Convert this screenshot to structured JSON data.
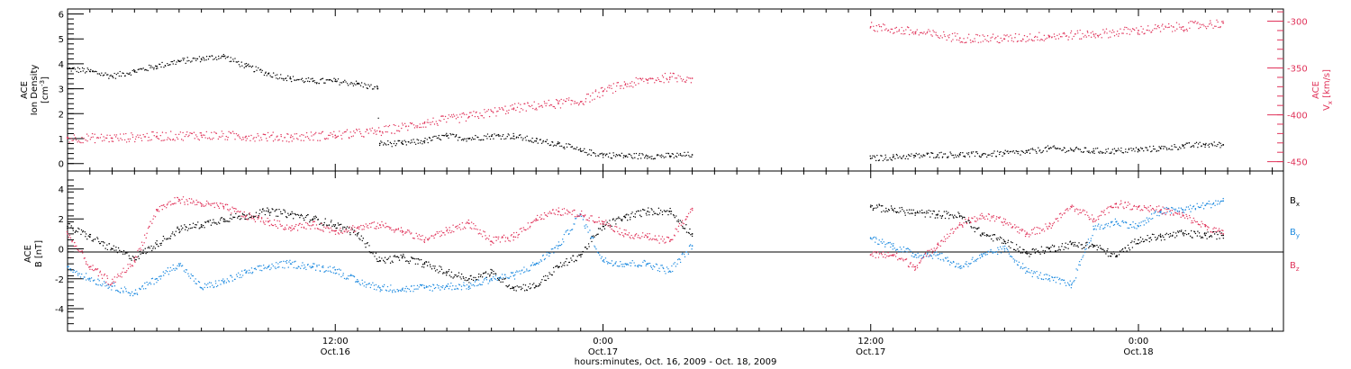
{
  "colors": {
    "black": "#000000",
    "pink": "#e0335a",
    "blue": "#1f8be0"
  },
  "xaxis": {
    "title": "hours:minutes, Oct. 16, 2009 - Oct. 18, 2009",
    "ticks": [
      {
        "time": "12:00",
        "date": "Oct.16",
        "hours": 12
      },
      {
        "time": "0:00",
        "date": "Oct.17",
        "hours": 24
      },
      {
        "time": "12:00",
        "date": "Oct.17",
        "hours": 36
      },
      {
        "time": "0:00",
        "date": "Oct.18",
        "hours": 48
      }
    ],
    "range_hours": [
      0,
      54.5
    ]
  },
  "chart_data": [
    {
      "type": "scatter",
      "panel": "top",
      "ylabel_left": [
        "ACE",
        "Ion Density",
        "[cm",
        "-3",
        "]"
      ],
      "ylabel_right": [
        "ACE",
        "V",
        "x",
        " [km/s]"
      ],
      "yticks_left": [
        "0",
        "1",
        "2",
        "3",
        "4",
        "5",
        "6"
      ],
      "ylim_left": [
        -0.3,
        6.2
      ],
      "yticks_right": [
        "-300",
        "-350",
        "-400",
        "-450"
      ],
      "ylim_right": [
        -460,
        -287
      ],
      "series": [
        {
          "axis": "left",
          "color": "black",
          "points": [
            [
              0,
              3.8
            ],
            [
              1,
              3.7
            ],
            [
              2,
              3.5
            ],
            [
              3,
              3.7
            ],
            [
              4,
              3.9
            ],
            [
              5,
              4.1
            ],
            [
              6,
              4.2
            ],
            [
              7,
              4.3
            ],
            [
              8,
              3.9
            ],
            [
              9,
              3.6
            ],
            [
              10,
              3.4
            ],
            [
              11,
              3.3
            ],
            [
              12,
              3.3
            ],
            [
              13,
              3.2
            ],
            [
              13.9,
              3.0
            ],
            [
              14,
              0.8
            ],
            [
              15,
              0.8
            ],
            [
              16,
              0.9
            ],
            [
              17,
              1.1
            ],
            [
              18,
              1.0
            ],
            [
              19,
              1.1
            ],
            [
              20,
              1.1
            ],
            [
              21,
              0.9
            ],
            [
              22,
              0.8
            ],
            [
              23,
              0.5
            ],
            [
              24,
              0.35
            ],
            [
              25,
              0.3
            ],
            [
              26,
              0.3
            ],
            [
              27,
              0.3
            ],
            [
              28,
              0.35
            ],
            [
              36,
              0.2
            ],
            [
              37,
              0.25
            ],
            [
              38,
              0.3
            ],
            [
              39,
              0.35
            ],
            [
              40,
              0.35
            ],
            [
              41,
              0.35
            ],
            [
              42,
              0.4
            ],
            [
              43,
              0.45
            ],
            [
              44,
              0.6
            ],
            [
              45,
              0.55
            ],
            [
              46,
              0.5
            ],
            [
              47,
              0.5
            ],
            [
              48,
              0.55
            ],
            [
              49,
              0.6
            ],
            [
              50,
              0.7
            ],
            [
              51,
              0.75
            ],
            [
              51.8,
              0.75
            ]
          ]
        },
        {
          "axis": "right",
          "color": "pink",
          "points": [
            [
              0,
              -425
            ],
            [
              2,
              -425
            ],
            [
              4,
              -423
            ],
            [
              6,
              -422
            ],
            [
              8,
              -423
            ],
            [
              10,
              -424
            ],
            [
              12,
              -422
            ],
            [
              14,
              -418
            ],
            [
              16,
              -409
            ],
            [
              18,
              -402
            ],
            [
              20,
              -393
            ],
            [
              22,
              -388
            ],
            [
              23,
              -386
            ],
            [
              24,
              -375
            ],
            [
              25,
              -368
            ],
            [
              26,
              -363
            ],
            [
              27,
              -360
            ],
            [
              28,
              -361
            ],
            [
              36,
              -306
            ],
            [
              38,
              -312
            ],
            [
              40,
              -318
            ],
            [
              42,
              -319
            ],
            [
              44,
              -316
            ],
            [
              46,
              -314
            ],
            [
              48,
              -310
            ],
            [
              50,
              -306
            ],
            [
              51.8,
              -302
            ]
          ]
        }
      ]
    },
    {
      "type": "scatter",
      "panel": "bottom",
      "ylabel_left": [
        "ACE",
        "B",
        " [nT]"
      ],
      "yticks_left": [
        "-4",
        "-2",
        "0",
        "2",
        "4"
      ],
      "ylim_left": [
        -5.5,
        5.2
      ],
      "legend": [
        "B",
        "x",
        "B",
        "y",
        "B",
        "z"
      ],
      "legend_position": "right",
      "series": [
        {
          "name_bind": "Bx",
          "color": "black",
          "points": [
            [
              0,
              1.5
            ],
            [
              1,
              0.8
            ],
            [
              2,
              0
            ],
            [
              3,
              -0.6
            ],
            [
              4,
              0.3
            ],
            [
              5,
              1.3
            ],
            [
              6,
              1.6
            ],
            [
              7,
              2.0
            ],
            [
              8,
              2.2
            ],
            [
              9,
              2.5
            ],
            [
              10,
              2.3
            ],
            [
              11,
              2.0
            ],
            [
              12,
              1.6
            ],
            [
              13,
              1.0
            ],
            [
              14,
              -0.8
            ],
            [
              15,
              -0.6
            ],
            [
              16,
              -1.0
            ],
            [
              17,
              -1.6
            ],
            [
              18,
              -2.0
            ],
            [
              19,
              -1.6
            ],
            [
              20,
              -2.6
            ],
            [
              21,
              -2.5
            ],
            [
              22,
              -1.2
            ],
            [
              23,
              -0.4
            ],
            [
              24,
              1.5
            ],
            [
              25,
              2.1
            ],
            [
              26,
              2.5
            ],
            [
              27,
              2.5
            ],
            [
              28,
              1.0
            ],
            [
              36,
              2.8
            ],
            [
              37,
              2.6
            ],
            [
              38,
              2.4
            ],
            [
              39,
              2.3
            ],
            [
              40,
              2.2
            ],
            [
              41,
              1.0
            ],
            [
              42,
              0.5
            ],
            [
              43,
              -0.3
            ],
            [
              44,
              0
            ],
            [
              45,
              0.3
            ],
            [
              46,
              0.2
            ],
            [
              47,
              -0.5
            ],
            [
              48,
              0.6
            ],
            [
              49,
              0.8
            ],
            [
              50,
              1.0
            ],
            [
              51,
              0.9
            ],
            [
              51.8,
              0.9
            ]
          ]
        },
        {
          "name_bind": "By",
          "color": "blue",
          "points": [
            [
              0,
              -1.2
            ],
            [
              1,
              -2.0
            ],
            [
              2,
              -2.5
            ],
            [
              3,
              -3.0
            ],
            [
              4,
              -2.0
            ],
            [
              5,
              -1.0
            ],
            [
              6,
              -2.6
            ],
            [
              7,
              -2.2
            ],
            [
              8,
              -1.6
            ],
            [
              9,
              -1.2
            ],
            [
              10,
              -1.0
            ],
            [
              11,
              -1.2
            ],
            [
              12,
              -1.4
            ],
            [
              13,
              -2.2
            ],
            [
              14,
              -2.6
            ],
            [
              15,
              -2.7
            ],
            [
              16,
              -2.6
            ],
            [
              17,
              -2.5
            ],
            [
              18,
              -2.5
            ],
            [
              19,
              -2.0
            ],
            [
              20,
              -1.8
            ],
            [
              21,
              -1.0
            ],
            [
              22,
              0.2
            ],
            [
              23,
              2.3
            ],
            [
              24,
              -0.8
            ],
            [
              25,
              -1.0
            ],
            [
              26,
              -1.0
            ],
            [
              27,
              -1.5
            ],
            [
              28,
              0.2
            ],
            [
              36,
              0.7
            ],
            [
              37,
              0.2
            ],
            [
              38,
              -0.4
            ],
            [
              39,
              -0.4
            ],
            [
              40,
              -1.2
            ],
            [
              41,
              -0.5
            ],
            [
              42,
              0
            ],
            [
              43,
              -1.5
            ],
            [
              44,
              -2.0
            ],
            [
              45,
              -2.4
            ],
            [
              46,
              1.3
            ],
            [
              47,
              1.8
            ],
            [
              48,
              1.5
            ],
            [
              49,
              2.5
            ],
            [
              50,
              2.6
            ],
            [
              51,
              2.9
            ],
            [
              51.8,
              3.2
            ]
          ]
        },
        {
          "name_bind": "Bz",
          "color": "pink",
          "points": [
            [
              0,
              1.0
            ],
            [
              1,
              -1.2
            ],
            [
              2,
              -2.3
            ],
            [
              3,
              -0.8
            ],
            [
              4,
              2.6
            ],
            [
              5,
              3.3
            ],
            [
              6,
              3.0
            ],
            [
              7,
              2.8
            ],
            [
              8,
              2.2
            ],
            [
              9,
              1.8
            ],
            [
              10,
              1.4
            ],
            [
              11,
              1.6
            ],
            [
              12,
              1.2
            ],
            [
              13,
              1.4
            ],
            [
              14,
              1.6
            ],
            [
              15,
              1.2
            ],
            [
              16,
              0.6
            ],
            [
              17,
              1.2
            ],
            [
              18,
              1.7
            ],
            [
              19,
              0.5
            ],
            [
              20,
              0.8
            ],
            [
              21,
              2.0
            ],
            [
              22,
              2.5
            ],
            [
              23,
              2.3
            ],
            [
              24,
              1.8
            ],
            [
              25,
              1.0
            ],
            [
              26,
              0.8
            ],
            [
              27,
              0.5
            ],
            [
              28,
              2.7
            ],
            [
              36,
              -0.4
            ],
            [
              37,
              -0.4
            ],
            [
              38,
              -1.2
            ],
            [
              39,
              0.3
            ],
            [
              40,
              1.6
            ],
            [
              41,
              2.2
            ],
            [
              42,
              1.8
            ],
            [
              43,
              1.0
            ],
            [
              44,
              1.5
            ],
            [
              45,
              2.8
            ],
            [
              46,
              2.0
            ],
            [
              47,
              3.0
            ],
            [
              48,
              2.8
            ],
            [
              49,
              2.6
            ],
            [
              50,
              2.2
            ],
            [
              51,
              1.5
            ],
            [
              51.8,
              1.0
            ]
          ]
        }
      ]
    }
  ]
}
